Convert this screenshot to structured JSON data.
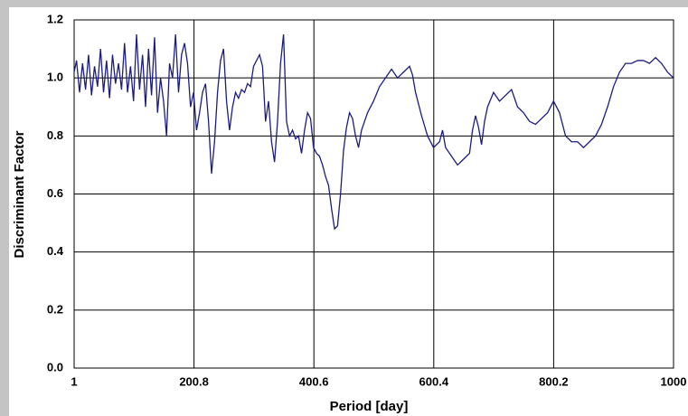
{
  "chart_data": {
    "type": "line",
    "xlabel": "Period [day]",
    "ylabel": "Discriminant Factor",
    "xlim": [
      1,
      1000
    ],
    "xticks": [
      1,
      200.8,
      400.6,
      600.4,
      800.2,
      1000
    ],
    "ylim": [
      0,
      1.2
    ],
    "yticks": [
      {
        "value": 0,
        "label": "0.0"
      },
      0.2,
      0.4,
      0.6,
      0.8,
      {
        "value": 1,
        "label": "1.0"
      },
      1.2
    ],
    "grid": true,
    "series": [
      {
        "color": "#1c1c80",
        "x": [
          1,
          5,
          10,
          15,
          20,
          25,
          30,
          35,
          40,
          45,
          50,
          55,
          60,
          65,
          70,
          75,
          80,
          85,
          90,
          95,
          100,
          105,
          110,
          115,
          120,
          125,
          130,
          135,
          140,
          145,
          150,
          155,
          160,
          165,
          170,
          175,
          180,
          185,
          190,
          195,
          200,
          205,
          210,
          215,
          220,
          225,
          230,
          235,
          240,
          245,
          250,
          255,
          260,
          265,
          270,
          275,
          280,
          285,
          290,
          295,
          300,
          305,
          310,
          315,
          320,
          325,
          330,
          335,
          340,
          345,
          350,
          355,
          360,
          365,
          370,
          375,
          380,
          385,
          390,
          395,
          400,
          405,
          410,
          415,
          420,
          425,
          430,
          435,
          440,
          445,
          450,
          455,
          460,
          465,
          470,
          475,
          480,
          490,
          500,
          510,
          520,
          530,
          540,
          550,
          560,
          565,
          570,
          580,
          590,
          600,
          610,
          615,
          620,
          630,
          640,
          650,
          660,
          665,
          670,
          675,
          680,
          685,
          690,
          700,
          710,
          720,
          730,
          740,
          750,
          760,
          770,
          780,
          790,
          800,
          810,
          820,
          830,
          840,
          850,
          860,
          870,
          880,
          890,
          900,
          910,
          920,
          930,
          940,
          950,
          960,
          970,
          980,
          990,
          1000
        ],
        "values": [
          1.02,
          1.06,
          0.95,
          1.05,
          0.96,
          1.08,
          0.94,
          1.04,
          0.97,
          1.1,
          0.95,
          1.06,
          0.93,
          1.08,
          0.98,
          1.05,
          0.96,
          1.12,
          0.95,
          1.04,
          0.92,
          1.15,
          0.96,
          1.08,
          0.9,
          1.1,
          0.94,
          1.14,
          0.88,
          1.0,
          0.92,
          0.8,
          1.05,
          1.0,
          1.15,
          0.95,
          1.08,
          1.12,
          1.05,
          0.9,
          0.95,
          0.82,
          0.88,
          0.95,
          0.98,
          0.85,
          0.67,
          0.78,
          0.95,
          1.06,
          1.1,
          0.92,
          0.82,
          0.9,
          0.95,
          0.93,
          0.96,
          0.95,
          0.98,
          0.97,
          1.04,
          1.06,
          1.08,
          1.04,
          0.85,
          0.92,
          0.78,
          0.71,
          0.85,
          1.05,
          1.15,
          0.85,
          0.8,
          0.82,
          0.79,
          0.8,
          0.74,
          0.82,
          0.88,
          0.86,
          0.76,
          0.74,
          0.73,
          0.7,
          0.66,
          0.63,
          0.55,
          0.48,
          0.49,
          0.6,
          0.75,
          0.83,
          0.88,
          0.86,
          0.8,
          0.76,
          0.82,
          0.88,
          0.92,
          0.97,
          1.0,
          1.03,
          1.0,
          1.02,
          1.04,
          1.01,
          0.95,
          0.87,
          0.8,
          0.76,
          0.78,
          0.82,
          0.76,
          0.73,
          0.7,
          0.72,
          0.74,
          0.82,
          0.87,
          0.83,
          0.77,
          0.85,
          0.9,
          0.95,
          0.92,
          0.94,
          0.96,
          0.9,
          0.88,
          0.85,
          0.84,
          0.86,
          0.88,
          0.92,
          0.88,
          0.8,
          0.78,
          0.78,
          0.76,
          0.78,
          0.8,
          0.84,
          0.9,
          0.97,
          1.02,
          1.05,
          1.05,
          1.06,
          1.06,
          1.05,
          1.07,
          1.05,
          1.02,
          1.0
        ]
      }
    ]
  }
}
